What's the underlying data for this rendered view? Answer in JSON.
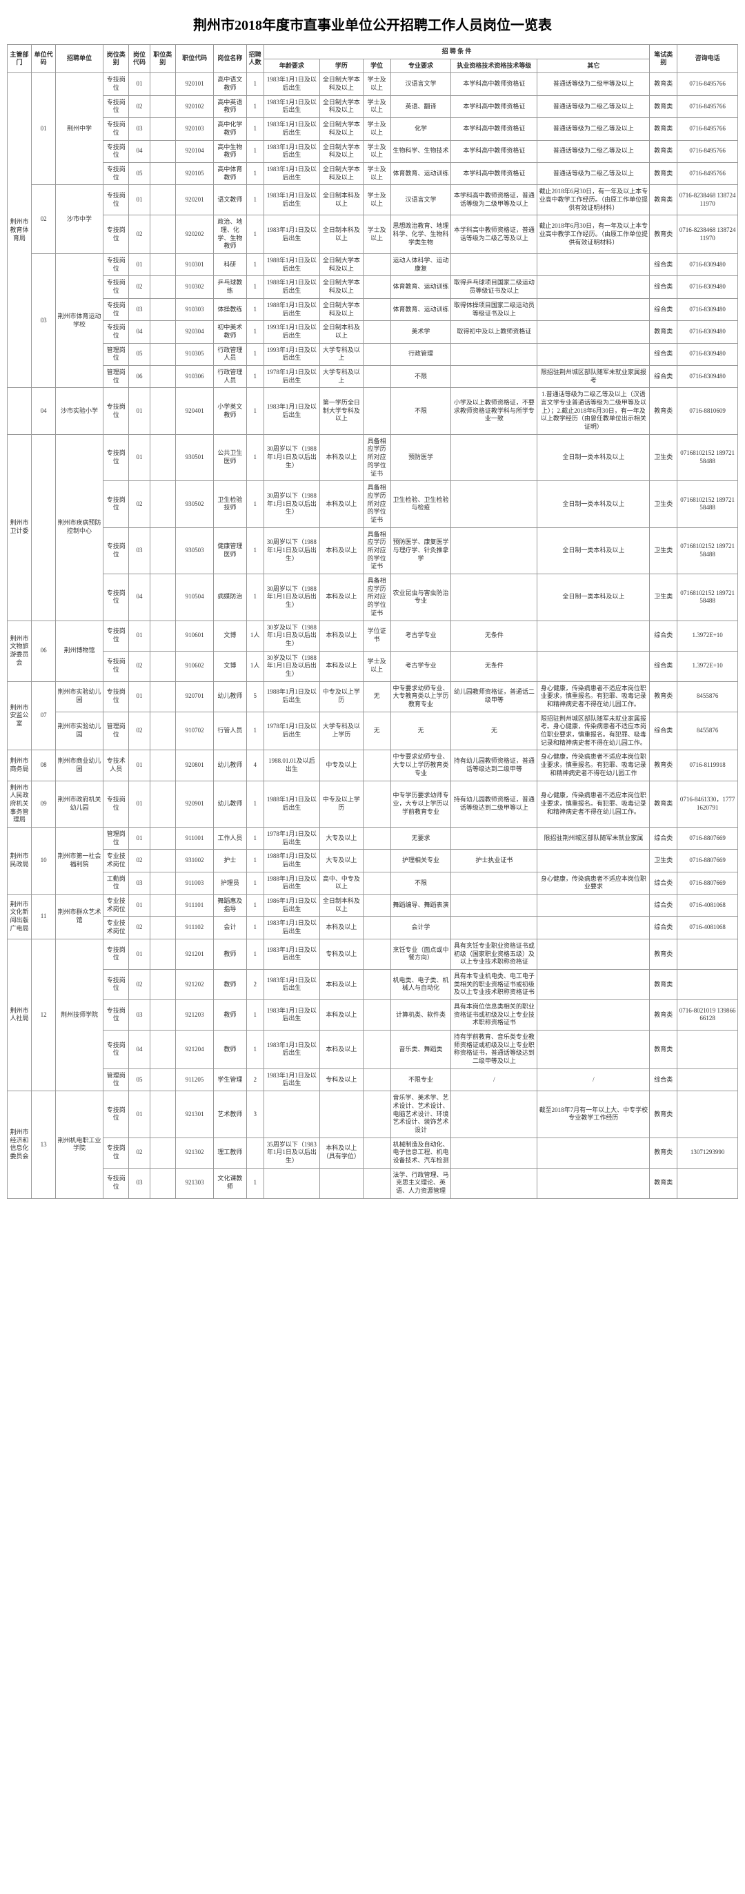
{
  "title": "荆州市2018年度市直事业单位公开招聘工作人员岗位一览表",
  "headers": {
    "dept": "主管部门",
    "ucode": "单位代码",
    "unit": "招聘单位",
    "ptype": "岗位类别",
    "pcode": "岗位代码",
    "jtype": "职位类别",
    "jcode": "职位代码",
    "jname": "岗位名称",
    "num": "招聘人数",
    "cond_group": "招 聘 条 件",
    "age": "年龄要求",
    "edu": "学历",
    "deg": "学位",
    "major": "专业要求",
    "cert": "执业资格技术资格技术等级",
    "other": "其它",
    "exam": "笔试类别",
    "tel": "咨询电话"
  },
  "rows": [
    {
      "dept": "荆州市教育体育局",
      "dept_rs": 13,
      "ucode": "01",
      "ucode_rs": 5,
      "unit": "荆州中学",
      "unit_rs": 5,
      "ptype": "专技岗位",
      "pcode": "01",
      "jtype": "",
      "jcode": "920101",
      "jname": "高中语文教师",
      "num": "1",
      "age": "1983年1月1日及以后出生",
      "edu": "全日制大学本科及以上",
      "deg": "学士及以上",
      "major": "汉语言文学",
      "cert": "本学科高中教师资格证",
      "other": "普通话等级为二级甲等及以上",
      "exam": "教育类",
      "tel": "0716-8495766"
    },
    {
      "ptype": "专技岗位",
      "pcode": "02",
      "jtype": "",
      "jcode": "920102",
      "jname": "高中英语教师",
      "num": "1",
      "age": "1983年1月1日及以后出生",
      "edu": "全日制大学本科及以上",
      "deg": "学士及以上",
      "major": "英语、翻译",
      "cert": "本学科高中教师资格证",
      "other": "普通话等级为二级乙等及以上",
      "exam": "教育类",
      "tel": "0716-8495766"
    },
    {
      "ptype": "专技岗位",
      "pcode": "03",
      "jtype": "",
      "jcode": "920103",
      "jname": "高中化学教师",
      "num": "1",
      "age": "1983年1月1日及以后出生",
      "edu": "全日制大学本科及以上",
      "deg": "学士及以上",
      "major": "化学",
      "cert": "本学科高中教师资格证",
      "other": "普通话等级为二级乙等及以上",
      "exam": "教育类",
      "tel": "0716-8495766"
    },
    {
      "ptype": "专技岗位",
      "pcode": "04",
      "jtype": "",
      "jcode": "920104",
      "jname": "高中生物教师",
      "num": "1",
      "age": "1983年1月1日及以后出生",
      "edu": "全日制大学本科及以上",
      "deg": "学士及以上",
      "major": "生物科学、生物技术",
      "cert": "本学科高中教师资格证",
      "other": "普通话等级为二级乙等及以上",
      "exam": "教育类",
      "tel": "0716-8495766"
    },
    {
      "ptype": "专技岗位",
      "pcode": "05",
      "jtype": "",
      "jcode": "920105",
      "jname": "高中体育教师",
      "num": "1",
      "age": "1983年1月1日及以后出生",
      "edu": "全日制大学本科及以上",
      "deg": "学士及以上",
      "major": "体育教育、运动训练",
      "cert": "本学科高中教师资格证",
      "other": "普通话等级为二级乙等及以上",
      "exam": "教育类",
      "tel": "0716-8495766"
    },
    {
      "ucode": "02",
      "ucode_rs": 2,
      "unit": "沙市中学",
      "unit_rs": 2,
      "ptype": "专技岗位",
      "pcode": "01",
      "jtype": "",
      "jcode": "920201",
      "jname": "语文教师",
      "num": "1",
      "age": "1983年1月1日及以后出生",
      "edu": "全日制本科及以上",
      "deg": "学士及以上",
      "major": "汉语言文学",
      "cert": "本学科高中教师资格证，普通话等级为二级甲等及以上",
      "other": "截止2018年6月30日，有一年及以上本专业高中教学工作经历。（由原工作单位提供有效证明材料）",
      "exam": "教育类",
      "tel": "0716-8238468 13872411970"
    },
    {
      "ptype": "专技岗位",
      "pcode": "02",
      "jtype": "",
      "jcode": "920202",
      "jname": "政治、地理、化学、生物教师",
      "num": "1",
      "age": "1983年1月1日及以后出生",
      "edu": "全日制本科及以上",
      "deg": "学士及以上",
      "major": "思想政治教育、地理科学、化学、生物科学类生物",
      "cert": "本学科高中教师资格证，普通话等级为二级乙等及以上",
      "other": "截止2018年6月30日，有一年及以上本专业高中教学工作经历。（由原工作单位提供有效证明材料）",
      "exam": "教育类",
      "tel": "0716-8238468 13872411970"
    },
    {
      "ucode": "03",
      "ucode_rs": 6,
      "unit": "荆州市体育运动学校",
      "unit_rs": 6,
      "ptype": "专技岗位",
      "pcode": "01",
      "jtype": "",
      "jcode": "910301",
      "jname": "科研",
      "num": "1",
      "age": "1988年1月1日及以后出生",
      "edu": "全日制大学本科及以上",
      "deg": "",
      "major": "运动人体科学、运动康复",
      "cert": "",
      "other": "",
      "exam": "综合类",
      "tel": "0716-8309480"
    },
    {
      "ptype": "专技岗位",
      "pcode": "02",
      "jtype": "",
      "jcode": "910302",
      "jname": "乒乓球教练",
      "num": "1",
      "age": "1988年1月1日及以后出生",
      "edu": "全日制大学本科及以上",
      "deg": "",
      "major": "体育教育、运动训练",
      "cert": "取得乒乓球项目国家二级运动员等级证书及以上",
      "other": "",
      "exam": "综合类",
      "tel": "0716-8309480"
    },
    {
      "ptype": "专技岗位",
      "pcode": "03",
      "jtype": "",
      "jcode": "910303",
      "jname": "体操教练",
      "num": "1",
      "age": "1988年1月1日及以后出生",
      "edu": "全日制大学本科及以上",
      "deg": "",
      "major": "体育教育、运动训练",
      "cert": "取得体操项目国家二级运动员等级证书及以上",
      "other": "",
      "exam": "综合类",
      "tel": "0716-8309480"
    },
    {
      "ptype": "专技岗位",
      "pcode": "04",
      "jtype": "",
      "jcode": "920304",
      "jname": "初中美术教师",
      "num": "1",
      "age": "1993年1月1日及以后出生",
      "edu": "全日制本科及以上",
      "deg": "",
      "major": "美术学",
      "cert": "取得初中及以上教师资格证",
      "other": "",
      "exam": "教育类",
      "tel": "0716-8309480"
    },
    {
      "ptype": "管理岗位",
      "pcode": "05",
      "jtype": "",
      "jcode": "910305",
      "jname": "行政管理人员",
      "num": "1",
      "age": "1993年1月1日及以后出生",
      "edu": "大学专科及以上",
      "deg": "",
      "major": "行政管理",
      "cert": "",
      "other": "",
      "exam": "综合类",
      "tel": "0716-8309480"
    },
    {
      "ptype": "管理岗位",
      "pcode": "06",
      "jtype": "",
      "jcode": "910306",
      "jname": "行政管理人员",
      "num": "1",
      "age": "1978年1月1日及以后出生",
      "edu": "大学专科及以上",
      "deg": "",
      "major": "不限",
      "cert": "",
      "other": "限招驻荆州城区部队随军未就业家属报考",
      "exam": "综合类",
      "tel": "0716-8309480"
    },
    {
      "dept": "",
      "ucode": "04",
      "unit": "沙市实验小学",
      "ptype": "专技岗位",
      "pcode": "01",
      "jtype": "",
      "jcode": "920401",
      "jname": "小学英文教师",
      "num": "1",
      "age": "1983年1月1日及以后出生",
      "edu": "第一学历全日制大学专科及以上",
      "deg": "",
      "major": "不限",
      "cert": "小学及以上教师资格证，不要求教师资格证教学科与所学专业一致",
      "other": "1.普通话等级为二级乙等及以上（汉语言文学专业普通话等级为二级甲等及以上）；2.截止2018年6月30日，有一年及以上教学经历（由曾任教单位出示相关证明）",
      "exam": "教育类",
      "tel": "0716-8810609"
    },
    {
      "dept": "荆州市卫计委",
      "dept_rs": 4,
      "ucode": "",
      "ucode_rs": 4,
      "unit": "荆州市疾病预防控制中心",
      "unit_rs": 4,
      "ptype": "专技岗位",
      "pcode": "01",
      "jtype": "",
      "jcode": "930501",
      "jname": "公共卫生医师",
      "num": "1",
      "age": "30周岁以下（1988年1月1日及以后出生）",
      "edu": "本科及以上",
      "deg": "具备相应学历所对应的学位证书",
      "major": "预防医学",
      "cert": "",
      "other": "全日制一类本科及以上",
      "exam": "卫生类",
      "tel": "07168102152 18972158488"
    },
    {
      "ptype": "专技岗位",
      "pcode": "02",
      "jtype": "",
      "jcode": "930502",
      "jname": "卫生检验技师",
      "num": "1",
      "age": "30周岁以下（1988年1月1日及以后出生）",
      "edu": "本科及以上",
      "deg": "具备相应学历所对应的学位证书",
      "major": "卫生检验、卫生检验与检疫",
      "cert": "",
      "other": "全日制一类本科及以上",
      "exam": "卫生类",
      "tel": "07168102152 18972158488"
    },
    {
      "ptype": "专技岗位",
      "pcode": "03",
      "jtype": "",
      "jcode": "930503",
      "jname": "健康管理医师",
      "num": "1",
      "age": "30周岁以下（1988年1月1日及以后出生）",
      "edu": "本科及以上",
      "deg": "具备相应学历所对应的学位证书",
      "major": "预防医学、康复医学与理疗学、针灸推拿学",
      "cert": "",
      "other": "全日制一类本科及以上",
      "exam": "卫生类",
      "tel": "07168102152 18972158488"
    },
    {
      "ptype": "专技岗位",
      "pcode": "04",
      "jtype": "",
      "jcode": "910504",
      "jname": "病媒防治",
      "num": "1",
      "age": "30周岁以下（1988年1月1日及以后出生）",
      "edu": "本科及以上",
      "deg": "具备相应学历所对应的学位证书",
      "major": "农业昆虫与害虫防治专业",
      "cert": "",
      "other": "全日制一类本科及以上",
      "exam": "卫生类",
      "tel": "07168102152 18972158488"
    },
    {
      "dept": "荆州市文物旅游委员会",
      "dept_rs": 2,
      "ucode": "06",
      "ucode_rs": 2,
      "unit": "荆州博物馆",
      "unit_rs": 2,
      "ptype": "专技岗位",
      "pcode": "01",
      "jtype": "",
      "jcode": "910601",
      "jname": "文博",
      "num": "1人",
      "age": "30岁及以下（1988年1月1日及以后出生）",
      "edu": "本科及以上",
      "deg": "学位证书",
      "major": "考古学专业",
      "cert": "无条件",
      "other": "",
      "exam": "综合类",
      "tel": "1.3972E+10"
    },
    {
      "ptype": "专技岗位",
      "pcode": "02",
      "jtype": "",
      "jcode": "910602",
      "jname": "文博",
      "num": "1人",
      "age": "30岁及以下（1988年1月1日及以后出生）",
      "edu": "本科及以上",
      "deg": "学士及以上",
      "major": "考古学专业",
      "cert": "无条件",
      "other": "",
      "exam": "综合类",
      "tel": "1.3972E+10"
    },
    {
      "dept": "荆州市安监公室",
      "dept_rs": 2,
      "ucode": "07",
      "ucode_rs": 2,
      "unit": "荆州市实验幼儿园",
      "unit_rs": 1,
      "ptype": "专技岗位",
      "pcode": "01",
      "jtype": "",
      "jcode": "920701",
      "jname": "幼儿教师",
      "num": "5",
      "age": "1988年1月1日及以后出生",
      "edu": "中专及以上学历",
      "deg": "无",
      "major": "中专要求幼师专业、大专教育类以上学历教育专业",
      "cert": "幼儿园教师资格证，普通话二级甲等",
      "other": "身心健康，传染病患者不适应本岗位职业要求，慎重报名。有犯罪、吸毒记录和精神病史者不得在幼儿园工作。",
      "exam": "教育类",
      "tel": "8455876"
    },
    {
      "unit": "荆州市实验幼儿园",
      "ptype": "管理岗位",
      "pcode": "02",
      "jtype": "",
      "jcode": "910702",
      "jname": "行管人员",
      "num": "1",
      "age": "1978年1月1日及以后出生",
      "edu": "大学专科及以上学历",
      "deg": "无",
      "major": "无",
      "cert": "无",
      "other": "限招驻荆州城区部队随军未就业家属报考。身心健康，传染病患者不适应本岗位职业要求，慎重报名。有犯罪、吸毒记录和精神病史者不得在幼儿园工作。",
      "exam": "综合类",
      "tel": "8455876"
    },
    {
      "dept": "荆州市商务局",
      "ucode": "08",
      "unit": "荆州市商业幼儿园",
      "ptype": "专技术人员",
      "pcode": "01",
      "jtype": "",
      "jcode": "920801",
      "jname": "幼儿教师",
      "num": "4",
      "age": "1988.01.01及以后出生",
      "edu": "中专及以上",
      "deg": "",
      "major": "中专要求幼师专业、大专以上学历教育类专业",
      "cert": "持有幼儿园教师资格证，普通话等级达到二级甲等",
      "other": "身心健康，传染病患者不适应本岗位职业要求，慎重报名。有犯罪、吸毒记录和精神病史者不得在幼儿园工作",
      "exam": "教育类",
      "tel": "0716-8119918"
    },
    {
      "dept": "荆州市人民政府机关事务管理局",
      "ucode": "09",
      "unit": "荆州市政府机关幼儿园",
      "ptype": "专技岗位",
      "pcode": "01",
      "jtype": "",
      "jcode": "920901",
      "jname": "幼儿教师",
      "num": "1",
      "age": "1988年1月1日及以后出生",
      "edu": "中专及以上学历",
      "deg": "",
      "major": "中专学历要求幼师专业，大专以上学历以学前教育专业",
      "cert": "持有幼儿园教师资格证，普通话等级达到二级甲等以上",
      "other": "身心健康，传染病患者不适应本岗位职业要求，慎重报名。有犯罪、吸毒记录和精神病史者不得在幼儿园工作。",
      "exam": "教育类",
      "tel": "0716-8461330，17771620791"
    },
    {
      "dept": "荆州市民政局",
      "dept_rs": 3,
      "ucode": "10",
      "ucode_rs": 3,
      "unit": "荆州市第一社会福利院",
      "unit_rs": 3,
      "ptype": "管理岗位",
      "pcode": "01",
      "jtype": "",
      "jcode": "911001",
      "jname": "工作人员",
      "num": "1",
      "age": "1978年1月1日及以后出生",
      "edu": "大专及以上",
      "deg": "",
      "major": "无要求",
      "cert": "",
      "other": "限招驻荆州城区部队随军未就业家属",
      "exam": "综合类",
      "tel": "0716-8807669"
    },
    {
      "ptype": "专业技术岗位",
      "pcode": "02",
      "jtype": "",
      "jcode": "931002",
      "jname": "护士",
      "num": "1",
      "age": "1988年1月1日及以后出生",
      "edu": "大专及以上",
      "deg": "",
      "major": "护理相关专业",
      "cert": "护士执业证书",
      "other": "",
      "exam": "卫生类",
      "tel": "0716-8807669"
    },
    {
      "ptype": "工勤岗位",
      "pcode": "03",
      "jtype": "",
      "jcode": "911003",
      "jname": "护理员",
      "num": "1",
      "age": "1988年1月1日及以后出生",
      "edu": "高中、中专及以上",
      "deg": "",
      "major": "不限",
      "cert": "",
      "other": "身心健康，传染病患者不适应本岗位职业要求",
      "exam": "综合类",
      "tel": "0716-8807669"
    },
    {
      "dept": "荆州市文化新闻出版广电局",
      "dept_rs": 2,
      "ucode": "11",
      "ucode_rs": 2,
      "unit": "荆州市群众艺术馆",
      "unit_rs": 2,
      "ptype": "专业技术岗位",
      "pcode": "01",
      "jtype": "",
      "jcode": "911101",
      "jname": "舞蹈惠及指导",
      "num": "1",
      "age": "1986年1月1日及以后出生",
      "edu": "全日制本科及以上",
      "deg": "",
      "major": "舞蹈编导、舞蹈表演",
      "cert": "",
      "other": "",
      "exam": "综合类",
      "tel": "0716-4081068"
    },
    {
      "ptype": "专业技术岗位",
      "pcode": "02",
      "jtype": "",
      "jcode": "911102",
      "jname": "会计",
      "num": "1",
      "age": "1983年1月1日及以后出生",
      "edu": "本科及以上",
      "deg": "",
      "major": "会计学",
      "cert": "",
      "other": "",
      "exam": "综合类",
      "tel": "0716-4081068"
    },
    {
      "dept": "荆州市人社局",
      "dept_rs": 5,
      "ucode": "12",
      "ucode_rs": 5,
      "unit": "荆州技师学院",
      "unit_rs": 5,
      "ptype": "专技岗位",
      "pcode": "01",
      "jtype": "",
      "jcode": "921201",
      "jname": "教师",
      "num": "1",
      "age": "1983年1月1日及以后出生",
      "edu": "专科及以上",
      "deg": "",
      "major": "烹饪专业（面点或中餐方向）",
      "cert": "具有烹饪专业职业资格证书或初级（国家职业资格五级）及以上专业技术职称资格证",
      "other": "",
      "exam": "教育类",
      "tel": ""
    },
    {
      "ptype": "专技岗位",
      "pcode": "02",
      "jtype": "",
      "jcode": "921202",
      "jname": "教师",
      "num": "2",
      "age": "1983年1月1日及以后出生",
      "edu": "本科及以上",
      "deg": "",
      "major": "机电类、电子类、机械人与自动化",
      "cert": "具有本专业机电类、电工电子类相关的职业资格证书或初级及以上专业技术职称资格证书",
      "other": "",
      "exam": "教育类",
      "tel": ""
    },
    {
      "ptype": "专技岗位",
      "pcode": "03",
      "jtype": "",
      "jcode": "921203",
      "jname": "教师",
      "num": "1",
      "age": "1983年1月1日及以后出生",
      "edu": "本科及以上",
      "deg": "",
      "major": "计算机类、软件类",
      "cert": "具有本岗位信息类相关的职业资格证书或初级及以上专业技术职称资格证书",
      "other": "",
      "exam": "教育类",
      "tel": "0716-8021019 13986666128"
    },
    {
      "ptype": "专技岗位",
      "pcode": "04",
      "jtype": "",
      "jcode": "921204",
      "jname": "教师",
      "num": "1",
      "age": "1983年1月1日及以后出生",
      "edu": "本科及以上",
      "deg": "",
      "major": "音乐类、舞蹈类",
      "cert": "持有学前教育、音乐类专业教师资格证或初级及以上专业职称资格证书，普通话等级达到二级甲等及以上",
      "other": "",
      "exam": "教育类",
      "tel": ""
    },
    {
      "ptype": "管理岗位",
      "pcode": "05",
      "jtype": "",
      "jcode": "911205",
      "jname": "学生管理",
      "num": "2",
      "age": "1983年1月1日及以后出生",
      "edu": "专科及以上",
      "deg": "",
      "major": "不限专业",
      "cert": "/",
      "other": "/",
      "exam": "综合类",
      "tel": ""
    },
    {
      "dept": "荆州市经济和信息化委员会",
      "dept_rs": 3,
      "ucode": "13",
      "ucode_rs": 3,
      "unit": "荆州机电职工业学院",
      "unit_rs": 3,
      "ptype": "专技岗位",
      "pcode": "01",
      "jtype": "",
      "jcode": "921301",
      "jname": "艺术教师",
      "num": "3",
      "age": "",
      "edu": "",
      "deg": "",
      "major": "音乐学、美术学、艺术设计、艺术设计、电脑艺术设计、环境艺术设计、装饰艺术设计",
      "cert": "",
      "other": "截至2018年7月有一年以上大、中专学校专业教学工作经历",
      "exam": "教育类",
      "tel": ""
    },
    {
      "ptype": "专技岗位",
      "pcode": "02",
      "jtype": "",
      "jcode": "921302",
      "jname": "理工教师",
      "num": "",
      "age": "35周岁以下（1983年1月1日及以后出生）",
      "edu": "本科及以上（具有学位）",
      "deg": "",
      "major": "机械制造及自动化、电子信息工程、机电设备技术、汽车检测",
      "cert": "",
      "other": "",
      "exam": "教育类",
      "tel": "13071293990"
    },
    {
      "ptype": "专技岗位",
      "pcode": "03",
      "jtype": "",
      "jcode": "921303",
      "jname": "文化课教师",
      "num": "1",
      "age": "",
      "edu": "",
      "deg": "",
      "major": "法学、行政管理、马克思主义理论、英语、人力资源管理",
      "cert": "",
      "other": "",
      "exam": "教育类",
      "tel": ""
    }
  ]
}
